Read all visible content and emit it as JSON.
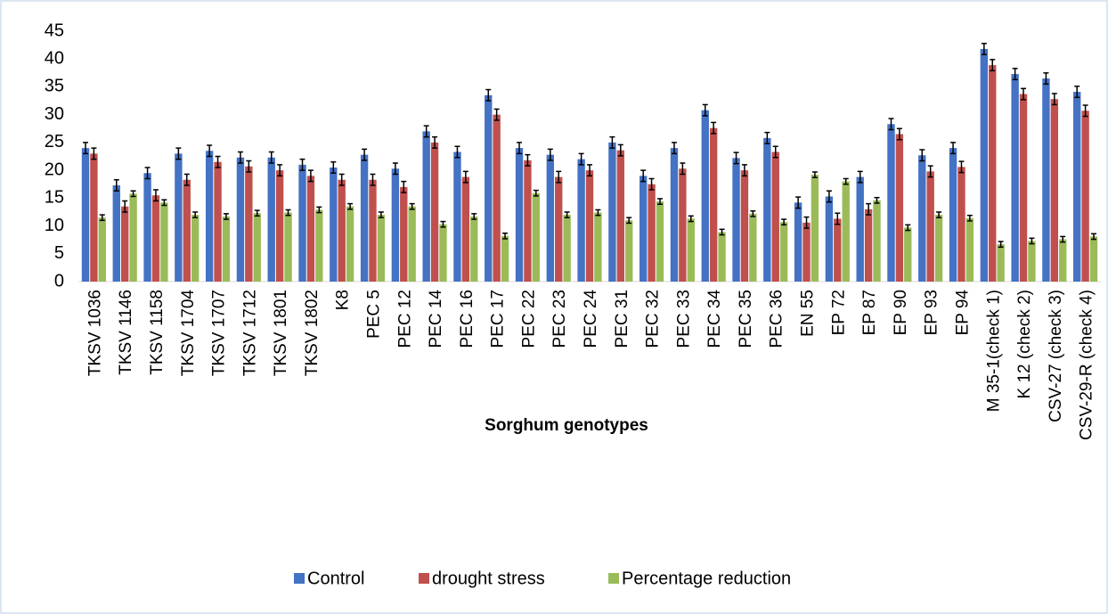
{
  "chart_data": {
    "type": "bar",
    "x_label": "Sorghum genotypes",
    "categories": [
      "TKSV 1036",
      "TKSV 1146",
      "TKSV 1158",
      "TKSV 1704",
      "TKSV 1707",
      "TKSV 1712",
      "TKSV 1801",
      "TKSV 1802",
      "K8",
      "PEC 5",
      "PEC 12",
      "PEC 14",
      "PEC 16",
      "PEC 17",
      "PEC 22",
      "PEC 23",
      "PEC 24",
      "PEC 31",
      "PEC 32",
      "PEC 33",
      "PEC 34",
      "PEC 35",
      "PEC 36",
      "EN 55",
      "EP 72",
      "EP 87",
      "EP 90",
      "EP 93",
      "EP 94",
      "M 35-1(check 1)",
      "K 12 (check 2)",
      "CSV-27 (check 3)",
      "CSV-29-R (check 4)"
    ],
    "series": [
      {
        "name": "Control",
        "color": "#4472c4",
        "values": [
          24,
          17.3,
          19.5,
          23,
          23.5,
          22.3,
          22.3,
          21,
          20.5,
          22.8,
          20.3,
          27,
          23.3,
          33.5,
          24,
          22.8,
          22,
          25,
          19,
          24,
          30.8,
          22.2,
          25.8,
          14.2,
          15.3,
          18.8,
          28.3,
          22.7,
          24,
          41.8,
          37.3,
          36.5,
          34.1
        ],
        "errors": [
          1,
          1,
          1,
          1,
          1,
          1,
          1,
          1,
          1,
          1,
          1,
          1,
          1,
          1,
          1,
          1,
          1,
          1,
          1,
          1,
          1,
          1,
          1,
          1,
          1,
          1,
          1,
          1,
          1,
          1,
          1,
          1,
          1
        ]
      },
      {
        "name": "drought stress",
        "color": "#c0504d",
        "values": [
          23,
          13.5,
          15.5,
          18.3,
          21.5,
          20.7,
          20,
          19,
          18.3,
          18.3,
          17,
          25,
          18.8,
          30,
          21.8,
          18.8,
          20,
          23.6,
          17.5,
          20.3,
          27.6,
          20,
          23.3,
          10.6,
          11.3,
          13,
          26.5,
          19.8,
          20.6,
          38.9,
          33.7,
          32.8,
          30.7
        ],
        "errors": [
          1,
          1,
          1,
          1,
          1,
          1,
          1,
          1,
          1,
          1,
          1,
          1,
          1,
          1,
          1,
          1,
          1,
          1,
          1,
          1,
          1,
          1,
          1,
          1,
          1,
          1,
          1,
          1,
          1,
          1,
          1,
          1,
          1
        ]
      },
      {
        "name": "Percentage reduction",
        "color": "#9bbb59",
        "values": [
          11.5,
          15.8,
          14.2,
          12,
          11.7,
          12.3,
          12.4,
          12.9,
          13.5,
          12,
          13.5,
          10.3,
          11.7,
          8.2,
          15.9,
          12,
          12.4,
          11,
          14.4,
          11.3,
          8.9,
          12.2,
          10.7,
          19.2,
          18,
          14.6,
          9.7,
          12,
          11.4,
          6.7,
          7.3,
          7.6,
          8.1
        ],
        "errors": [
          0.5,
          0.5,
          0.5,
          0.5,
          0.5,
          0.5,
          0.5,
          0.5,
          0.5,
          0.5,
          0.5,
          0.5,
          0.5,
          0.5,
          0.5,
          0.5,
          0.5,
          0.5,
          0.5,
          0.5,
          0.5,
          0.5,
          0.5,
          0.5,
          0.5,
          0.5,
          0.5,
          0.5,
          0.5,
          0.5,
          0.5,
          0.5,
          0.5
        ]
      }
    ],
    "ylim": [
      0,
      45
    ],
    "yticks": [
      0,
      5,
      10,
      15,
      20,
      25,
      30,
      35,
      40,
      45
    ],
    "legend": "bottom"
  }
}
